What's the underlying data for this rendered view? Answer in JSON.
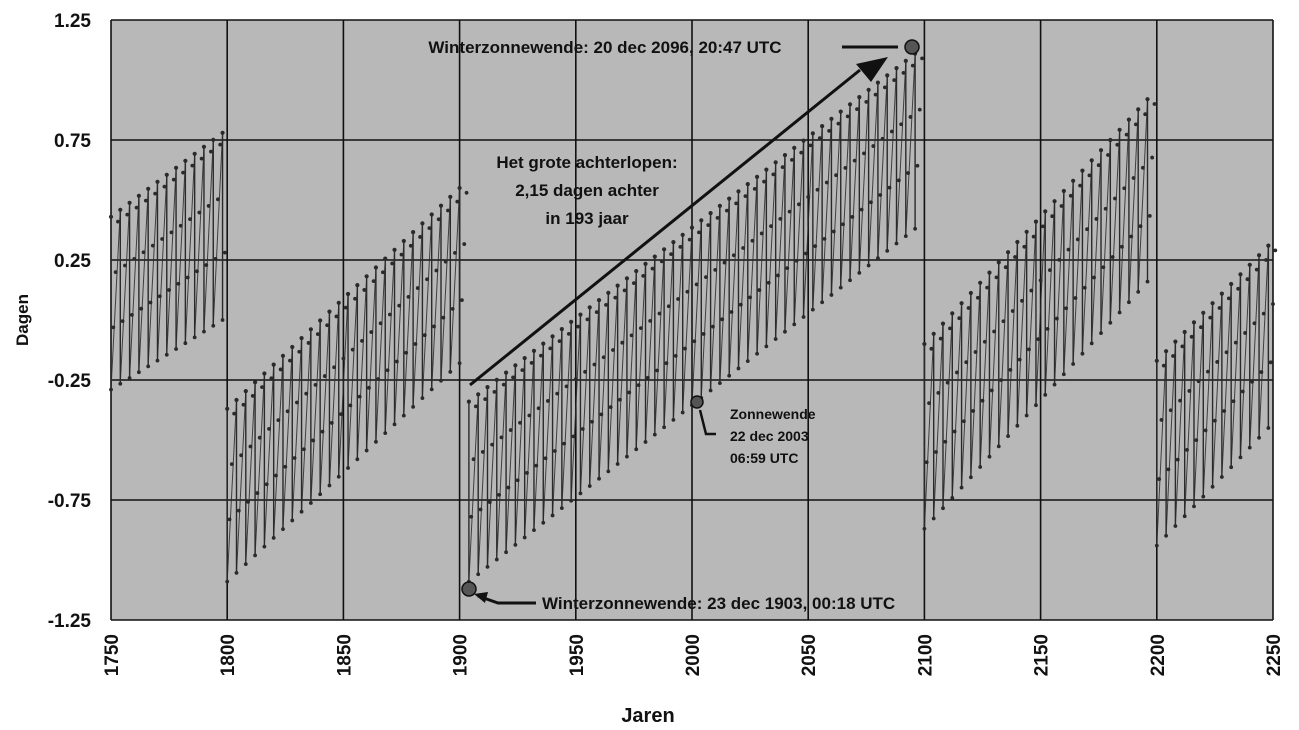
{
  "chart_data": {
    "type": "line",
    "title": "",
    "xlabel": "Jaren",
    "ylabel": "Dagen",
    "xlim": [
      1750,
      2250
    ],
    "ylim": [
      -1.25,
      1.25
    ],
    "x_ticks": [
      "1750",
      "1800",
      "1850",
      "1900",
      "1950",
      "2000",
      "2050",
      "2100",
      "2150",
      "2200",
      "2250"
    ],
    "y_ticks": [
      "1.25",
      "0.75",
      "0.25",
      "-0.25",
      "-0.75",
      "-1.25"
    ],
    "grid": true,
    "legend": "none",
    "colors": {
      "plot_bg": "#b8b8b8",
      "series": "#2a2a2a",
      "grid": "#111111",
      "text": "#111111"
    },
    "series": [
      {
        "x_start": 1750,
        "x_end": 1796,
        "high_start": 0.43,
        "high_end": 0.78,
        "low_start": -0.29,
        "low_end": 0.0
      },
      {
        "x_start": 1800,
        "x_end": 1900,
        "high_start": -0.37,
        "high_end": 0.55,
        "low_start": -1.09,
        "low_end": -0.18
      },
      {
        "x_start": 1904,
        "x_end": 2096,
        "high_start": -0.34,
        "high_end": 1.11,
        "low_start": -1.09,
        "low_end": 0.38
      },
      {
        "x_start": 2100,
        "x_end": 2196,
        "high_start": -0.1,
        "high_end": 0.92,
        "low_start": -0.87,
        "low_end": 0.16
      },
      {
        "x_start": 2200,
        "x_end": 2248,
        "high_start": -0.17,
        "high_end": 0.31,
        "low_start": -0.94,
        "low_end": -0.45
      }
    ],
    "annotations": {
      "winter_2096": "Winterzonnewende: 20 dec 2096, 20:47 UTC",
      "achterlopen": [
        "Het grote achterlopen:",
        "2,15 dagen achter",
        "in 193 jaar"
      ],
      "zonnewende_2003": [
        "Zonnewende",
        "22 dec 2003",
        "06:59 UTC"
      ],
      "winter_1903": "Winterzonnewende: 23 dec 1903, 00:18 UTC"
    }
  }
}
